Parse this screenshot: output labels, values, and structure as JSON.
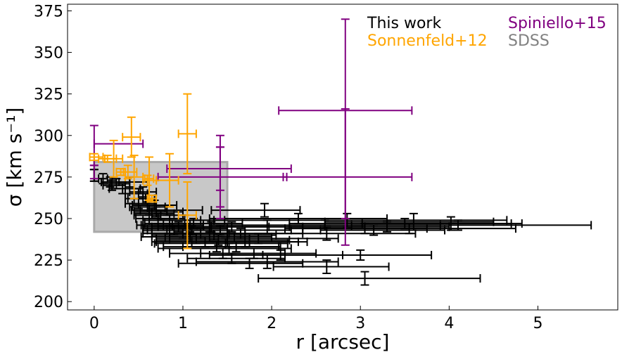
{
  "chart_data": {
    "type": "scatter",
    "xlabel": "r [arcsec]",
    "ylabel": "σ [km s⁻¹]",
    "xlim": [
      -0.3,
      5.9
    ],
    "ylim": [
      195,
      379
    ],
    "xticks": [
      0,
      1,
      2,
      3,
      4,
      5
    ],
    "yticks": [
      200,
      225,
      250,
      275,
      300,
      325,
      350,
      375
    ],
    "grid": false,
    "legend_placement": "top-right",
    "shaded_region": {
      "name": "SDSS",
      "x": [
        0,
        1.5
      ],
      "y": [
        242,
        284
      ],
      "color": "#c8c8c8",
      "edge": "#a9a9a9"
    },
    "legend": [
      {
        "label": "This work",
        "color": "#000000"
      },
      {
        "label": "Spiniello+15",
        "color": "#800080"
      },
      {
        "label": "Sonnenfeld+12",
        "color": "#ffa500"
      },
      {
        "label": "SDSS",
        "color": "#808080"
      }
    ],
    "series": [
      {
        "name": "This work",
        "color": "#000000",
        "points": [
          [
            0.0,
            276,
            0.0,
            0.0,
            3.5
          ],
          [
            0.0,
            276,
            0.0,
            0.0,
            3.5
          ],
          [
            0.1,
            274,
            0.05,
            0.05,
            3
          ],
          [
            0.18,
            272,
            0.1,
            0.1,
            3
          ],
          [
            0.2,
            270,
            0.1,
            0.15,
            3
          ],
          [
            0.25,
            271,
            0.15,
            0.15,
            3
          ],
          [
            0.32,
            268,
            0.15,
            0.2,
            3
          ],
          [
            0.4,
            272,
            0.2,
            0.2,
            3
          ],
          [
            0.45,
            262,
            0.1,
            0.1,
            3
          ],
          [
            0.5,
            265,
            0.15,
            0.1,
            3
          ],
          [
            0.5,
            259,
            0.15,
            0.2,
            3
          ],
          [
            0.55,
            266,
            0.15,
            0.15,
            3
          ],
          [
            0.58,
            262,
            0.2,
            0.1,
            3
          ],
          [
            0.6,
            257,
            0.2,
            0.2,
            3
          ],
          [
            0.62,
            255,
            0.2,
            0.2,
            3
          ],
          [
            0.65,
            253,
            0.2,
            0.25,
            3
          ],
          [
            0.68,
            258,
            0.25,
            0.25,
            3
          ],
          [
            0.7,
            254,
            0.25,
            0.3,
            3
          ],
          [
            0.72,
            250,
            0.25,
            0.3,
            3
          ],
          [
            0.75,
            252,
            0.3,
            0.25,
            3
          ],
          [
            0.78,
            246,
            0.3,
            0.3,
            3
          ],
          [
            0.82,
            255,
            0.3,
            0.4,
            3
          ],
          [
            0.85,
            249,
            0.3,
            0.35,
            3
          ],
          [
            0.88,
            246,
            0.35,
            0.35,
            3
          ],
          [
            0.9,
            243,
            0.35,
            0.4,
            3
          ],
          [
            0.95,
            245,
            0.4,
            0.35,
            3
          ],
          [
            1.0,
            241,
            0.45,
            0.5,
            3
          ],
          [
            1.02,
            249,
            0.4,
            0.45,
            3
          ],
          [
            1.05,
            244,
            0.5,
            0.45,
            3
          ],
          [
            1.08,
            239,
            0.55,
            0.5,
            3
          ],
          [
            1.1,
            243,
            0.5,
            0.6,
            3
          ],
          [
            1.12,
            247,
            0.55,
            0.55,
            3
          ],
          [
            1.15,
            238,
            0.45,
            0.6,
            3
          ],
          [
            1.2,
            241,
            0.55,
            0.5,
            3
          ],
          [
            1.25,
            236,
            0.6,
            0.5,
            3
          ],
          [
            1.3,
            239,
            0.5,
            0.7,
            3
          ],
          [
            1.32,
            245,
            0.6,
            0.65,
            3
          ],
          [
            1.35,
            240,
            0.7,
            0.7,
            3
          ],
          [
            1.38,
            233,
            0.6,
            0.7,
            3
          ],
          [
            1.4,
            237,
            0.7,
            0.8,
            3
          ],
          [
            1.42,
            243,
            0.6,
            0.8,
            3
          ],
          [
            1.45,
            229,
            0.6,
            0.7,
            3
          ],
          [
            1.48,
            235,
            0.8,
            0.7,
            3
          ],
          [
            1.5,
            236,
            0.8,
            0.9,
            3
          ],
          [
            1.52,
            232,
            0.8,
            0.7,
            3
          ],
          [
            1.55,
            245,
            0.9,
            0.8,
            3
          ],
          [
            1.55,
            226,
            0.5,
            0.6,
            3
          ],
          [
            1.6,
            233,
            0.6,
            0.5,
            3
          ],
          [
            1.65,
            241,
            0.8,
            0.7,
            3
          ],
          [
            1.7,
            236,
            0.6,
            0.6,
            3
          ],
          [
            1.75,
            223,
            0.8,
            0.6,
            3
          ],
          [
            1.8,
            229,
            0.6,
            0.7,
            3
          ],
          [
            1.85,
            238,
            1.0,
            0.9,
            3
          ],
          [
            1.92,
            255,
            0.6,
            0.4,
            4
          ],
          [
            1.95,
            224,
            0.8,
            0.8,
            4
          ],
          [
            1.95,
            245,
            1.1,
            1.1,
            4
          ],
          [
            2.1,
            228,
            0.8,
            0.7,
            3
          ],
          [
            2.3,
            250,
            1.0,
            1.0,
            3
          ],
          [
            2.6,
            246,
            1.3,
            1.3,
            3
          ],
          [
            2.62,
            241,
            1.1,
            1.0,
            4
          ],
          [
            2.62,
            221,
            0.6,
            0.7,
            4
          ],
          [
            2.85,
            249,
            1.5,
            1.8,
            4
          ],
          [
            3.0,
            228,
            1.1,
            0.8,
            3
          ],
          [
            3.05,
            244,
            0.9,
            0.7,
            3
          ],
          [
            3.15,
            243,
            0.6,
            0.8,
            3
          ],
          [
            3.3,
            245,
            1.1,
            0.7,
            3
          ],
          [
            3.5,
            247,
            1.3,
            1.2,
            3
          ],
          [
            3.6,
            248,
            1.0,
            0.9,
            5
          ],
          [
            3.55,
            244,
            1.2,
            1.2,
            3
          ],
          [
            3.05,
            214,
            1.2,
            1.3,
            4
          ],
          [
            4.02,
            247,
            1.0,
            0.8,
            4
          ],
          [
            4.1,
            246,
            1.2,
            1.5,
            3
          ]
        ]
      },
      {
        "name": "Spiniello+15",
        "color": "#800080",
        "points": [
          [
            0.0,
            294,
            0.0,
            0.0,
            12
          ],
          [
            0.0,
            295,
            0.0,
            0.55,
            0
          ],
          [
            0.0,
            278,
            0.0,
            0.0,
            4
          ],
          [
            1.42,
            280,
            0.6,
            0.8,
            13
          ],
          [
            1.42,
            275,
            0.7,
            0.75,
            18
          ],
          [
            1.42,
            275,
            0.0,
            0.0,
            25
          ],
          [
            2.83,
            315,
            0.75,
            0.75,
            0
          ],
          [
            2.83,
            302,
            0.0,
            0.0,
            68
          ],
          [
            2.83,
            275,
            0.7,
            0.75,
            0
          ],
          [
            2.83,
            283,
            0.0,
            0.0,
            33
          ]
        ]
      },
      {
        "name": "Sonnenfeld+12",
        "color": "#ffa500",
        "points": [
          [
            0.0,
            287,
            0.05,
            0.1,
            2
          ],
          [
            0.15,
            286,
            0.1,
            0.1,
            2
          ],
          [
            0.22,
            286,
            0.1,
            0.1,
            11
          ],
          [
            0.3,
            278,
            0.05,
            0.05,
            2
          ],
          [
            0.38,
            278,
            0.05,
            0.1,
            4
          ],
          [
            0.42,
            299,
            0.1,
            0.1,
            12
          ],
          [
            0.45,
            275,
            0.1,
            0.1,
            13
          ],
          [
            0.6,
            273,
            0.05,
            0.1,
            3
          ],
          [
            0.62,
            274,
            0.05,
            0.05,
            13
          ],
          [
            0.65,
            262,
            0.05,
            0.05,
            2
          ],
          [
            0.85,
            273,
            0.15,
            0.1,
            16
          ],
          [
            1.05,
            301,
            0.1,
            0.1,
            24
          ],
          [
            1.05,
            252,
            0.1,
            0.1,
            20
          ]
        ]
      }
    ]
  }
}
